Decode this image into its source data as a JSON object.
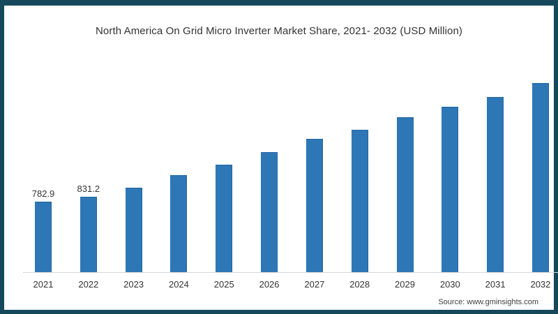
{
  "title": "North America On Grid Micro Inverter Market Share, 2021- 2032 (USD Million)",
  "source_label": "Source: www.gminsights.com",
  "colors": {
    "bar_fill": "#2e77b7",
    "bar_edge": "#2265a0",
    "frame_border": "#16485c",
    "axis_line": "#d8d8d8",
    "text": "#333333"
  },
  "chart_data": {
    "type": "bar",
    "title": "North America On Grid Micro Inverter Market Share, 2021- 2032 (USD Million)",
    "categories": [
      "2021",
      "2022",
      "2023",
      "2024",
      "2025",
      "2026",
      "2027",
      "2028",
      "2029",
      "2030",
      "2031",
      "2032"
    ],
    "values": [
      782.9,
      831.2,
      934,
      1073,
      1189,
      1328,
      1474,
      1575,
      1714,
      1830,
      1938,
      2092
    ],
    "data_labels": [
      "782.9",
      "831.2",
      "",
      "",
      "",
      "",
      "",
      "",
      "",
      "",
      "",
      ""
    ],
    "xlabel": "",
    "ylabel": "",
    "ylim": [
      0,
      2250
    ],
    "grid": false,
    "legend": false,
    "y_axis_visible": false,
    "source": "Source: www.gminsights.com"
  }
}
